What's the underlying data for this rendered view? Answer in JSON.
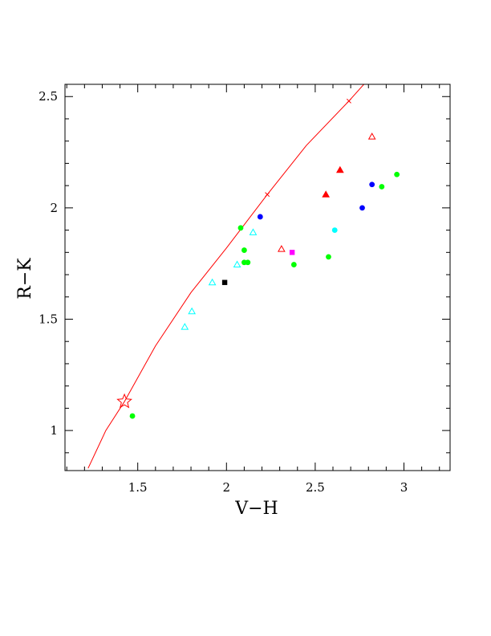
{
  "chart_data": {
    "type": "scatter",
    "title": "",
    "xlabel": "V−H",
    "ylabel": "R−K",
    "xlim": [
      1.09,
      3.26
    ],
    "ylim": [
      0.82,
      2.555
    ],
    "xticks": [
      {
        "value": 1.5,
        "label": "1.5"
      },
      {
        "value": 2.0,
        "label": "2"
      },
      {
        "value": 2.5,
        "label": "2.5"
      },
      {
        "value": 3.0,
        "label": "3"
      }
    ],
    "yticks": [
      {
        "value": 1.0,
        "label": "1"
      },
      {
        "value": 1.5,
        "label": "1.5"
      },
      {
        "value": 2.0,
        "label": "2"
      },
      {
        "value": 2.5,
        "label": "2.5"
      }
    ],
    "x_minor_step": 0.1,
    "y_minor_step": 0.1,
    "grid": false,
    "curve": {
      "color": "#ff0000",
      "points": [
        [
          1.22,
          0.83
        ],
        [
          1.32,
          1.0
        ],
        [
          1.425,
          1.13
        ],
        [
          1.6,
          1.38
        ],
        [
          1.8,
          1.62
        ],
        [
          2.0,
          1.82
        ],
        [
          2.23,
          2.06
        ],
        [
          2.45,
          2.28
        ],
        [
          2.69,
          2.48
        ],
        [
          2.78,
          2.56
        ]
      ],
      "x_markers": [
        [
          2.23,
          2.06
        ],
        [
          2.69,
          2.48
        ]
      ]
    },
    "star_marker": {
      "x": 1.425,
      "y": 1.13,
      "color": "#ff0000"
    },
    "series": [
      {
        "marker": "circle",
        "color": "#00ff00",
        "points": [
          [
            1.47,
            1.065
          ],
          [
            2.08,
            1.91
          ],
          [
            2.1,
            1.81
          ],
          [
            2.1,
            1.755
          ],
          [
            2.12,
            1.755
          ],
          [
            2.38,
            1.745
          ],
          [
            2.575,
            1.78
          ],
          [
            2.875,
            2.095
          ],
          [
            2.96,
            2.15
          ]
        ]
      },
      {
        "marker": "circle",
        "color": "#0000ff",
        "points": [
          [
            2.19,
            1.96
          ],
          [
            2.765,
            2.0
          ],
          [
            2.82,
            2.105
          ]
        ]
      },
      {
        "marker": "circle",
        "color": "#00ffff",
        "points": [
          [
            2.61,
            1.9
          ]
        ]
      },
      {
        "marker": "triangle-open",
        "color": "#00ffff",
        "points": [
          [
            1.765,
            1.465
          ],
          [
            1.805,
            1.535
          ],
          [
            1.92,
            1.665
          ],
          [
            2.06,
            1.745
          ],
          [
            2.15,
            1.89
          ]
        ]
      },
      {
        "marker": "triangle-open",
        "color": "#ff0000",
        "points": [
          [
            2.31,
            1.815
          ],
          [
            2.82,
            2.32
          ]
        ]
      },
      {
        "marker": "triangle-filled",
        "color": "#ff0000",
        "points": [
          [
            2.56,
            2.06
          ],
          [
            2.64,
            2.17
          ]
        ]
      },
      {
        "marker": "square",
        "color": "#000000",
        "points": [
          [
            1.99,
            1.665
          ]
        ]
      },
      {
        "marker": "square",
        "color": "#ff00ff",
        "points": [
          [
            2.37,
            1.8
          ]
        ]
      }
    ]
  }
}
